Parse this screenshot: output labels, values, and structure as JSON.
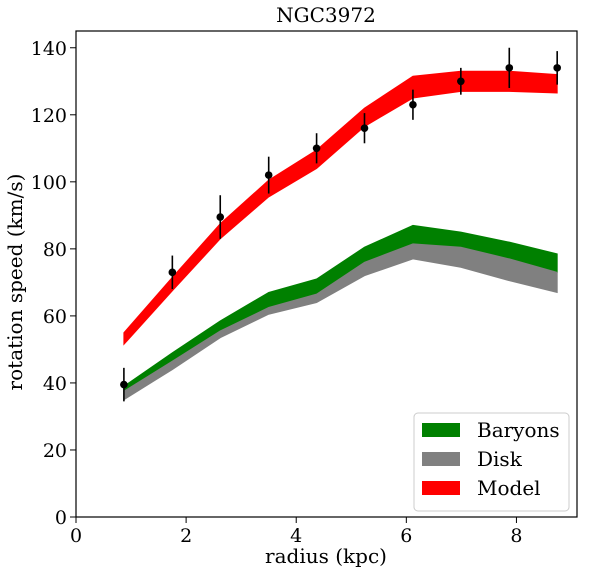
{
  "chart_data": {
    "type": "area",
    "title": "NGC3972",
    "xlabel": "radius (kpc)",
    "ylabel": "rotation speed (km/s)",
    "xlim": [
      0,
      9.1
    ],
    "ylim": [
      0,
      145
    ],
    "xticks": [
      0,
      2,
      4,
      6,
      8
    ],
    "yticks": [
      0,
      20,
      40,
      60,
      80,
      100,
      120,
      140
    ],
    "grid": false,
    "legend_position": "lower-right",
    "legend": [
      "Baryons",
      "Disk",
      "Model"
    ],
    "x": [
      0.87,
      1.75,
      2.62,
      3.5,
      4.37,
      5.24,
      6.12,
      6.99,
      7.87,
      8.74
    ],
    "bands": [
      {
        "name": "Baryons",
        "color": "#008000",
        "lower": [
          37.5,
          46.5,
          55.5,
          62.5,
          66.5,
          76,
          81.5,
          80.5,
          77,
          73
        ],
        "upper": [
          39,
          49,
          58.5,
          67,
          71,
          80.5,
          87,
          85,
          82,
          78.5
        ]
      },
      {
        "name": "Disk",
        "color": "#808080",
        "lower": [
          35,
          44,
          53.5,
          60.5,
          64,
          72,
          77,
          74.5,
          70.5,
          67
        ],
        "upper": [
          37.5,
          46.5,
          55.5,
          62.5,
          66.5,
          76,
          81.5,
          80.5,
          77,
          73
        ]
      },
      {
        "name": "Model",
        "color": "#ff0000",
        "lower": [
          51.5,
          67.5,
          83,
          95.5,
          104,
          116.5,
          125,
          127,
          127,
          126.5
        ],
        "upper": [
          55,
          71.5,
          87.5,
          100.5,
          109.5,
          122,
          131.5,
          133,
          133,
          132
        ]
      }
    ],
    "observations": {
      "x": [
        0.87,
        1.75,
        2.62,
        3.5,
        4.37,
        5.24,
        6.12,
        6.99,
        7.87,
        8.74
      ],
      "y": [
        39.5,
        73,
        89.5,
        102,
        110,
        116,
        123,
        130,
        134,
        134
      ],
      "err": [
        5,
        5,
        6.5,
        5.5,
        4.5,
        4.5,
        4.5,
        4,
        6,
        5
      ]
    }
  }
}
